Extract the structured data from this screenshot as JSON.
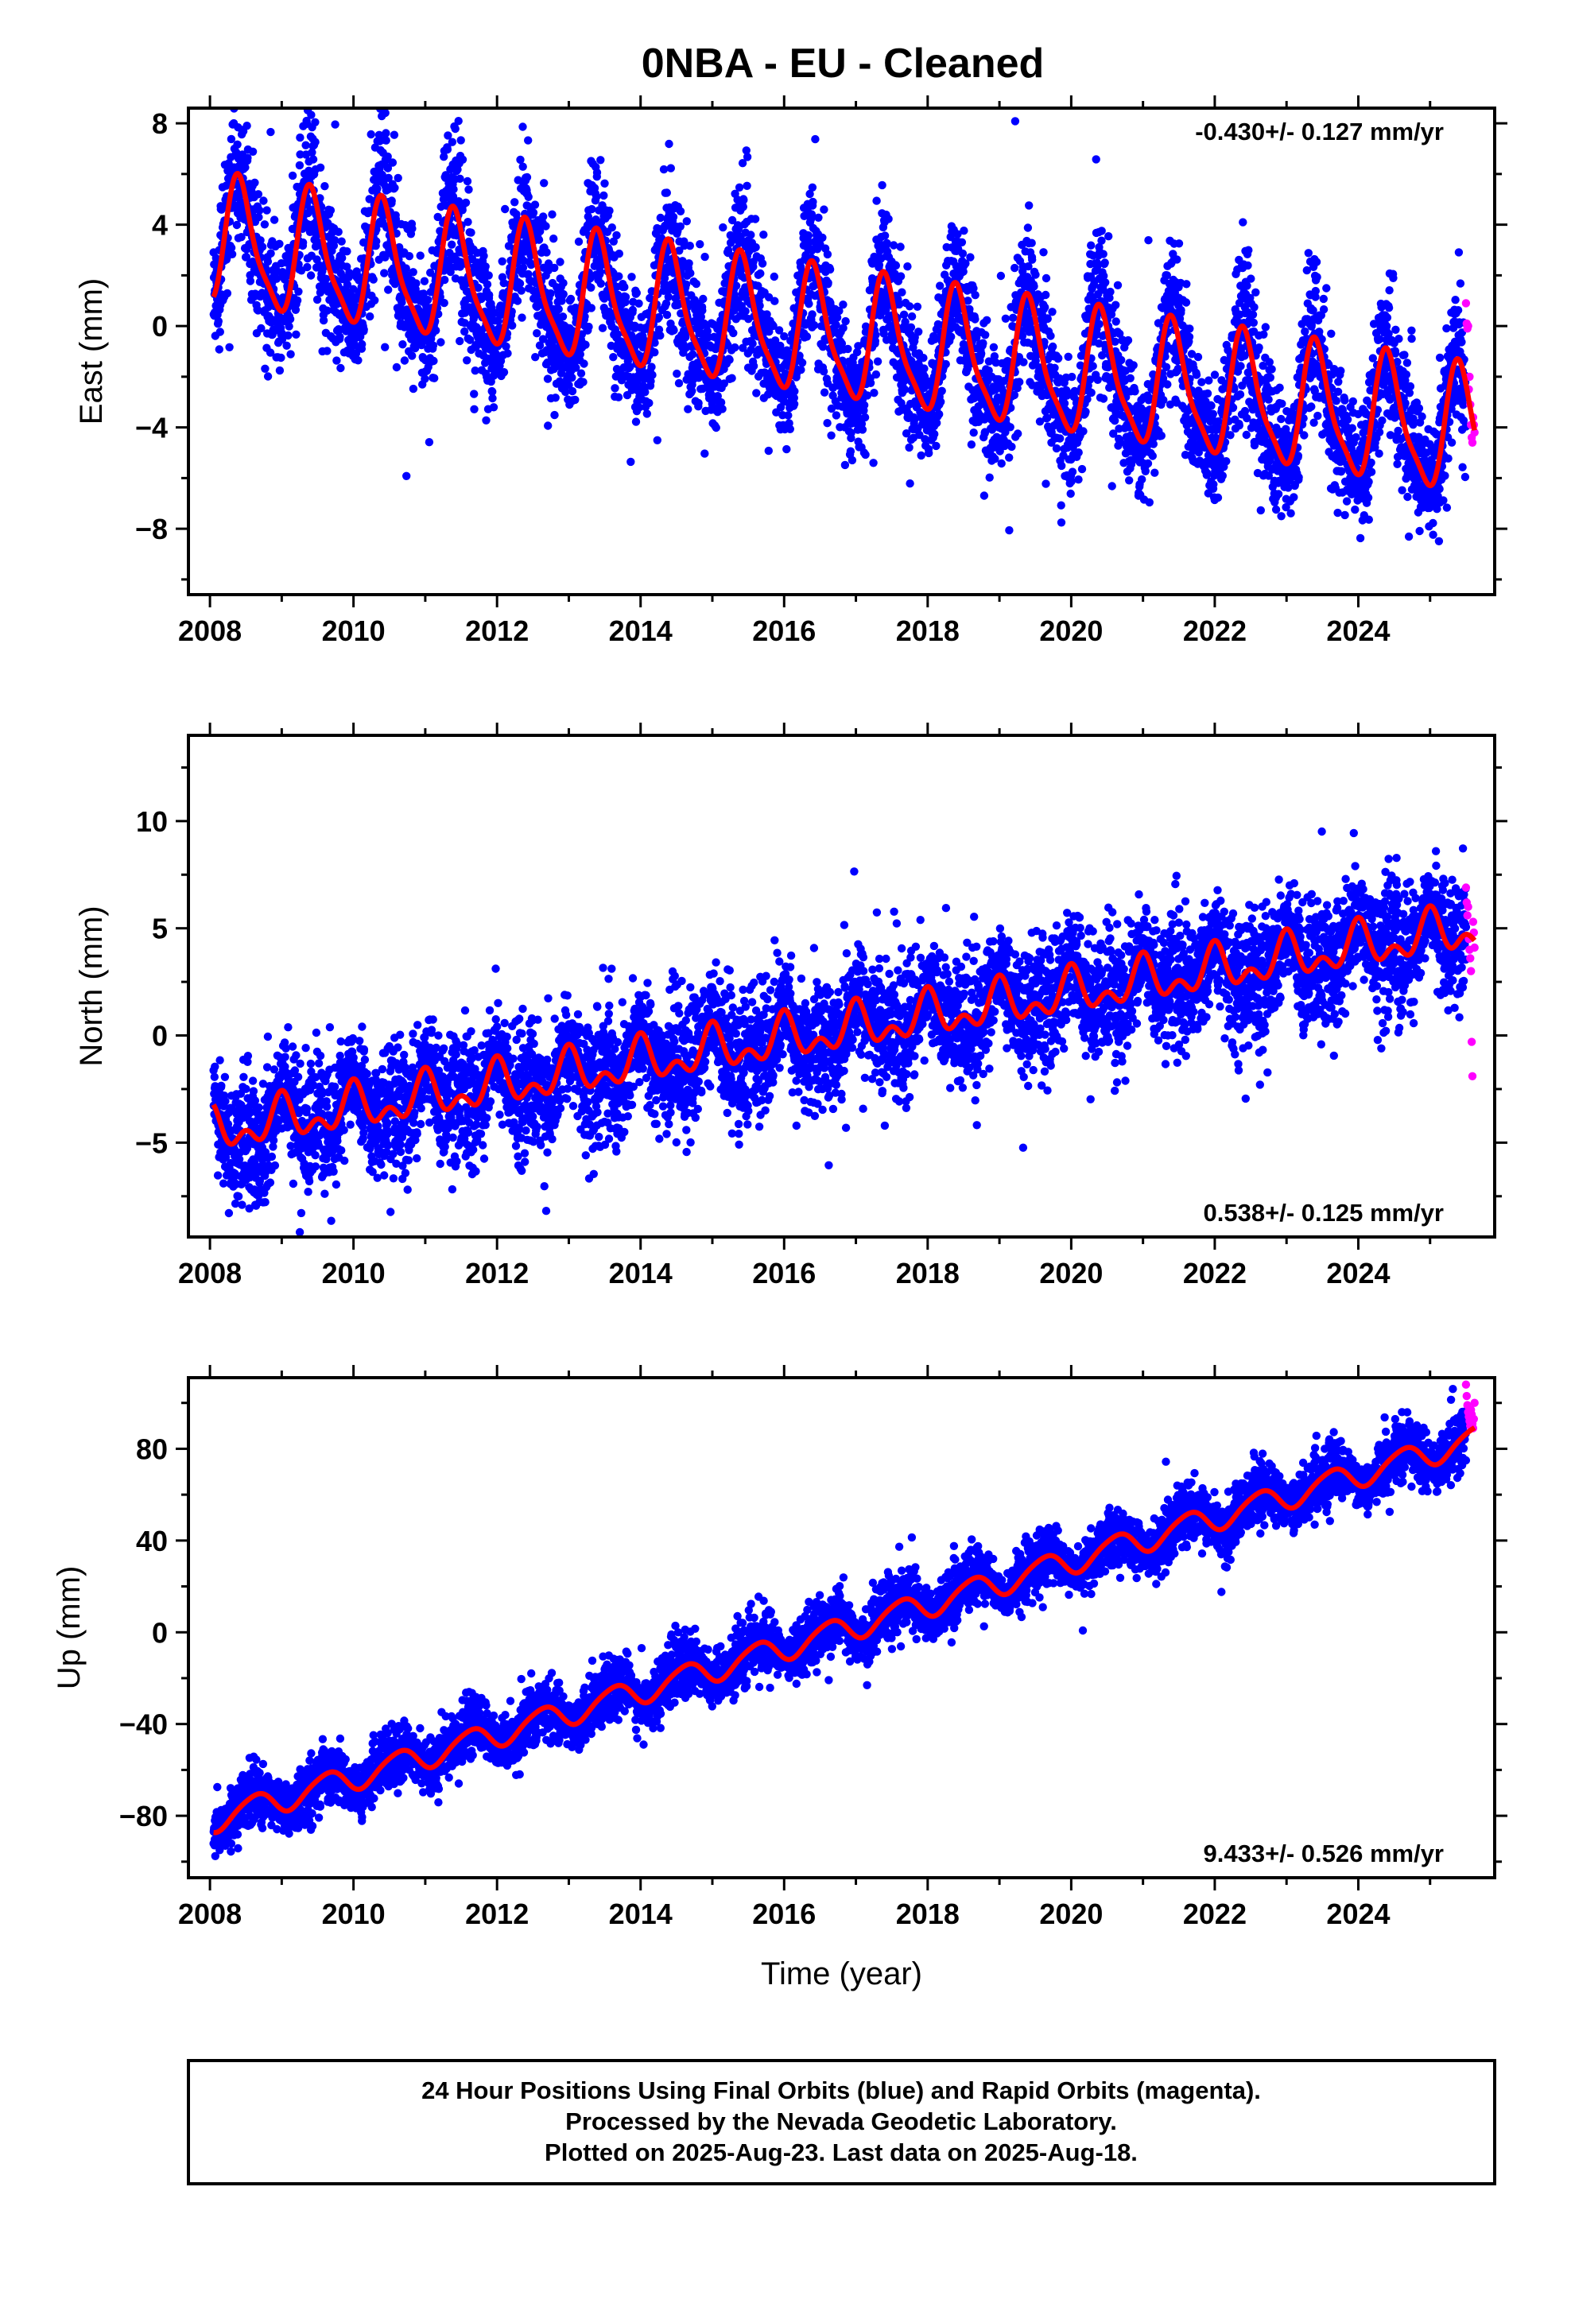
{
  "title": "0NBA  - EU - Cleaned",
  "footer": {
    "lines": [
      "24 Hour Positions Using Final Orbits (blue) and Rapid Orbits (magenta).",
      "Processed by the Nevada Geodetic Laboratory.",
      "Plotted on 2025-Aug-23. Last data on 2025-Aug-18."
    ]
  },
  "colors": {
    "final_orbits": "#0000ff",
    "rapid_orbits": "#ff00ff",
    "model_fit": "#ff0000",
    "frame": "#000000"
  },
  "chart_data": [
    {
      "type": "scatter",
      "component": "east",
      "ylabel": "East (mm)",
      "xlabel": "",
      "xlim": [
        2007.7,
        2025.9
      ],
      "ylim": [
        -10.6,
        8.6
      ],
      "xticks": [
        2008,
        2010,
        2012,
        2014,
        2016,
        2018,
        2020,
        2022,
        2024
      ],
      "yticks": [
        -8,
        -4,
        0,
        4,
        8
      ],
      "grid": false,
      "rate_label": "-0.430+/- 0.127 mm/yr",
      "rate_position": "top-right",
      "data_span": [
        2008.05,
        2025.62
      ],
      "model": {
        "description": "linear trend plus annual and semi-annual terms",
        "offset_at_2008": 3.3,
        "trend_mm_per_yr": -0.43,
        "annual_amplitude": 2.4,
        "annual_peak_year_fraction": 0.42,
        "semiannual_amplitude": 0.6,
        "semiannual_phase_year_fraction": 0.35
      },
      "noise_sd": 1.3,
      "series": [
        {
          "name": "Final Orbits (blue)",
          "color": "#0000ff",
          "x_range": [
            2008.05,
            2025.5
          ],
          "count": 6300
        },
        {
          "name": "Rapid Orbits (magenta)",
          "color": "#ff00ff",
          "x_range": [
            2025.5,
            2025.62
          ],
          "x": [
            2025.5,
            2025.51,
            2025.52,
            2025.53,
            2025.54,
            2025.55,
            2025.56,
            2025.57,
            2025.58,
            2025.59,
            2025.6,
            2025.61,
            2025.62
          ],
          "y": [
            0.9,
            0.1,
            -0.1,
            0.0,
            -2.5,
            -2.0,
            -3.1,
            -3.9,
            -4.4,
            -4.6,
            -3.6,
            -3.9,
            -4.2
          ]
        }
      ]
    },
    {
      "type": "scatter",
      "component": "north",
      "ylabel": "North (mm)",
      "xlabel": "",
      "xlim": [
        2007.7,
        2025.9
      ],
      "ylim": [
        -9.4,
        14.0
      ],
      "xticks": [
        2008,
        2010,
        2012,
        2014,
        2016,
        2018,
        2020,
        2022,
        2024
      ],
      "yticks": [
        -5,
        0,
        5,
        10
      ],
      "grid": false,
      "rate_label": "0.538+/- 0.125 mm/yr",
      "rate_position": "bottom-right",
      "data_span": [
        2008.05,
        2025.62
      ],
      "model": {
        "description": "linear trend plus annual and semi-annual terms",
        "offset_at_2008": -4.5,
        "trend_mm_per_yr": 0.538,
        "annual_amplitude": 0.8,
        "annual_peak_year_fraction": 0.0,
        "semiannual_amplitude": 0.6,
        "semiannual_phase_year_fraction": 0.0
      },
      "noise_sd": 1.3,
      "series": [
        {
          "name": "Final Orbits (blue)",
          "color": "#0000ff",
          "x_range": [
            2008.05,
            2025.5
          ],
          "count": 6300
        },
        {
          "name": "Rapid Orbits (magenta)",
          "color": "#ff00ff",
          "x_range": [
            2025.5,
            2025.62
          ],
          "x": [
            2025.5,
            2025.51,
            2025.52,
            2025.53,
            2025.54,
            2025.55,
            2025.56,
            2025.57,
            2025.58,
            2025.59,
            2025.6,
            2025.61,
            2025.62
          ],
          "y": [
            6.9,
            6.2,
            5.6,
            6.0,
            4.5,
            4.0,
            3.6,
            3.0,
            -0.3,
            -1.9,
            5.3,
            4.8,
            4.1
          ]
        }
      ]
    },
    {
      "type": "scatter",
      "component": "up",
      "ylabel": "Up (mm)",
      "xlabel": "Time (year)",
      "xlim": [
        2007.7,
        2025.9
      ],
      "ylim": [
        -107,
        111
      ],
      "xticks": [
        2008,
        2010,
        2012,
        2014,
        2016,
        2018,
        2020,
        2022,
        2024
      ],
      "yticks": [
        -80,
        -40,
        0,
        40,
        80
      ],
      "grid": false,
      "rate_label": "9.433+/- 0.526 mm/yr",
      "rate_position": "bottom-right",
      "data_span": [
        2008.05,
        2025.62
      ],
      "model": {
        "description": "linear trend plus annual and semi-annual terms",
        "offset_at_2008": -82,
        "trend_mm_per_yr": 9.433,
        "annual_amplitude": 5.5,
        "annual_peak_year_fraction": 0.62,
        "semiannual_amplitude": 0.8,
        "semiannual_phase_year_fraction": 0.3
      },
      "noise_sd": 5.5,
      "series": [
        {
          "name": "Final Orbits (blue)",
          "color": "#0000ff",
          "x_range": [
            2008.05,
            2025.5
          ],
          "count": 6300
        },
        {
          "name": "Rapid Orbits (magenta)",
          "color": "#ff00ff",
          "x_range": [
            2025.5,
            2025.62
          ],
          "x": [
            2025.5,
            2025.51,
            2025.52,
            2025.53,
            2025.54,
            2025.55,
            2025.56,
            2025.57,
            2025.58,
            2025.59,
            2025.6,
            2025.61,
            2025.62
          ],
          "y": [
            108,
            103,
            99,
            96,
            94,
            92,
            90,
            97,
            95,
            91,
            89,
            93,
            100
          ]
        }
      ]
    }
  ]
}
